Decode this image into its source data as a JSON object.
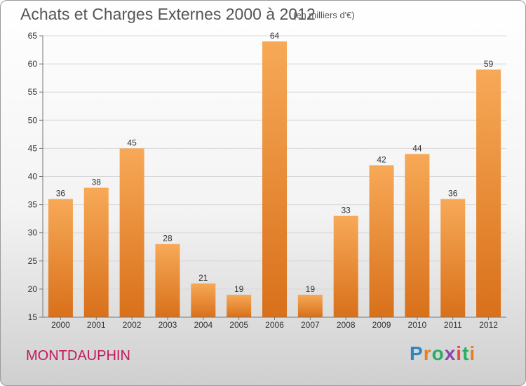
{
  "title": "Achats et Charges Externes 2000 à 2012",
  "subtitle": "(en milliers d'€)",
  "town": "MONTDAUPHIN",
  "brand": {
    "letters": [
      "P",
      "r",
      "o",
      "x",
      "i",
      "t",
      "i"
    ],
    "colors": [
      "#2e86c1",
      "#e67e22",
      "#27ae60",
      "#8e44ad",
      "#e74c3c",
      "#27ae60",
      "#e67e22"
    ]
  },
  "colors": {
    "bar_top": "#f7a957",
    "bar_bottom": "#d9701a",
    "grid": "#d8d8d8",
    "axis": "#777777"
  },
  "chart_data": {
    "type": "bar",
    "categories": [
      "2000",
      "2001",
      "2002",
      "2003",
      "2004",
      "2005",
      "2006",
      "2007",
      "2008",
      "2009",
      "2010",
      "2011",
      "2012"
    ],
    "values": [
      36,
      38,
      45,
      28,
      21,
      19,
      64,
      19,
      33,
      42,
      44,
      36,
      59
    ],
    "ylim": [
      15,
      65
    ],
    "yticks": [
      15,
      20,
      25,
      30,
      35,
      40,
      45,
      50,
      55,
      60,
      65
    ],
    "grid": true,
    "title": "Achats et Charges Externes 2000 à 2012",
    "xlabel": "",
    "ylabel": ""
  }
}
